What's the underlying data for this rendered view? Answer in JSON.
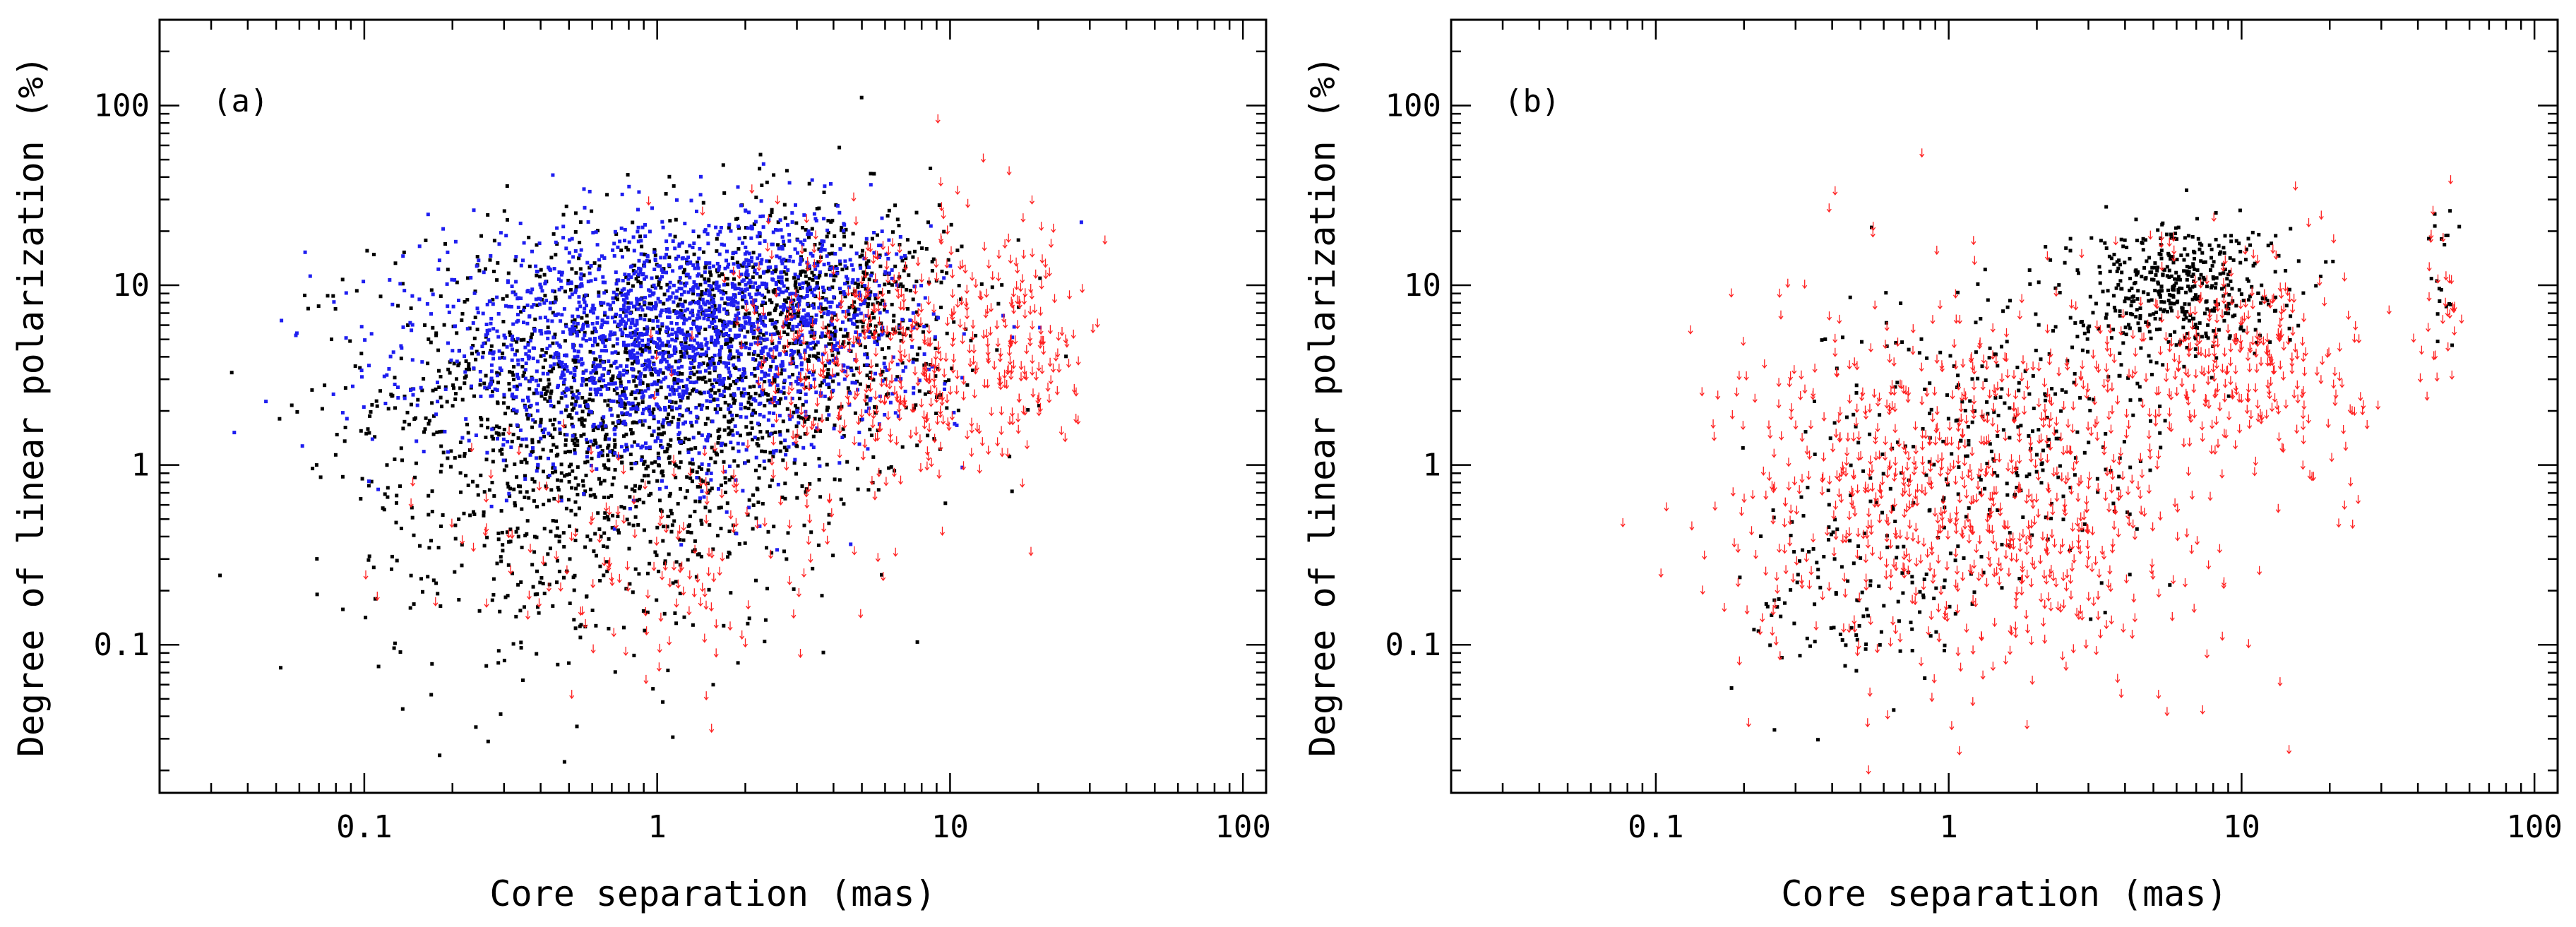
{
  "chart_data": [
    {
      "type": "scatter",
      "panel_label": "(a)",
      "xlabel": "Core separation (mas)",
      "ylabel": "Degree of linear polarization (%)",
      "xscale": "log",
      "yscale": "log",
      "xlim": [
        0.02,
        120
      ],
      "ylim": [
        0.015,
        300
      ],
      "xticks": [
        0.1,
        1,
        10,
        100
      ],
      "xtick_labels": [
        "0.1",
        "1",
        "10",
        "100"
      ],
      "yticks": [
        0.1,
        1,
        10,
        100
      ],
      "ytick_labels": [
        "0.1",
        "1",
        "10",
        "100"
      ],
      "series": [
        {
          "name": "detections (black)",
          "color": "#000000",
          "marker": "dot",
          "clusters": [
            {
              "cx": 0.9,
              "cy": 2.5,
              "sx": 0.45,
              "sy": 0.48,
              "n": 1500
            },
            {
              "cx": 4.0,
              "cy": 8.0,
              "sx": 0.22,
              "sy": 0.3,
              "n": 450
            },
            {
              "cx": 0.45,
              "cy": 0.45,
              "sx": 0.35,
              "sy": 0.45,
              "n": 300
            }
          ]
        },
        {
          "name": "detections (blue)",
          "color": "#1e1ef0",
          "marker": "dot",
          "clusters": [
            {
              "cx": 1.0,
              "cy": 4.5,
              "sx": 0.4,
              "sy": 0.32,
              "n": 1800
            },
            {
              "cx": 2.5,
              "cy": 10.0,
              "sx": 0.25,
              "sy": 0.22,
              "n": 400
            }
          ]
        },
        {
          "name": "upper limits (red)",
          "color": "#ff2020",
          "marker": "arrow",
          "clusters": [
            {
              "cx": 6.0,
              "cy": 4.0,
              "sx": 0.25,
              "sy": 0.4,
              "n": 450
            },
            {
              "cx": 1.0,
              "cy": 0.3,
              "sx": 0.35,
              "sy": 0.4,
              "n": 150
            },
            {
              "cx": 18.0,
              "cy": 5.0,
              "sx": 0.1,
              "sy": 0.3,
              "n": 120
            }
          ]
        }
      ]
    },
    {
      "type": "scatter",
      "panel_label": "(b)",
      "xlabel": "Core separation (mas)",
      "ylabel": "Degree of linear polarization (%)",
      "xscale": "log",
      "yscale": "log",
      "xlim": [
        0.02,
        120
      ],
      "ylim": [
        0.015,
        300
      ],
      "xticks": [
        0.1,
        1,
        10,
        100
      ],
      "xtick_labels": [
        "0.1",
        "1",
        "10",
        "100"
      ],
      "yticks": [
        0.1,
        1,
        10,
        100
      ],
      "ytick_labels": [
        "0.1",
        "1",
        "10",
        "100"
      ],
      "series": [
        {
          "name": "detections (black)",
          "color": "#000000",
          "marker": "dot",
          "clusters": [
            {
              "cx": 6.0,
              "cy": 10.0,
              "sx": 0.18,
              "sy": 0.18,
              "n": 450
            },
            {
              "cx": 1.5,
              "cy": 1.5,
              "sx": 0.3,
              "sy": 0.45,
              "n": 300
            },
            {
              "cx": 0.5,
              "cy": 0.2,
              "sx": 0.2,
              "sy": 0.3,
              "n": 120
            },
            {
              "cx": 48.0,
              "cy": 12.0,
              "sx": 0.04,
              "sy": 0.25,
              "n": 20
            }
          ]
        },
        {
          "name": "upper limits (red)",
          "color": "#ff2020",
          "marker": "arrow",
          "clusters": [
            {
              "cx": 1.2,
              "cy": 0.7,
              "sx": 0.4,
              "sy": 0.5,
              "n": 900
            },
            {
              "cx": 10.0,
              "cy": 4.0,
              "sx": 0.2,
              "sy": 0.3,
              "n": 300
            },
            {
              "cx": 48.0,
              "cy": 8.0,
              "sx": 0.04,
              "sy": 0.25,
              "n": 30
            }
          ]
        }
      ]
    }
  ]
}
